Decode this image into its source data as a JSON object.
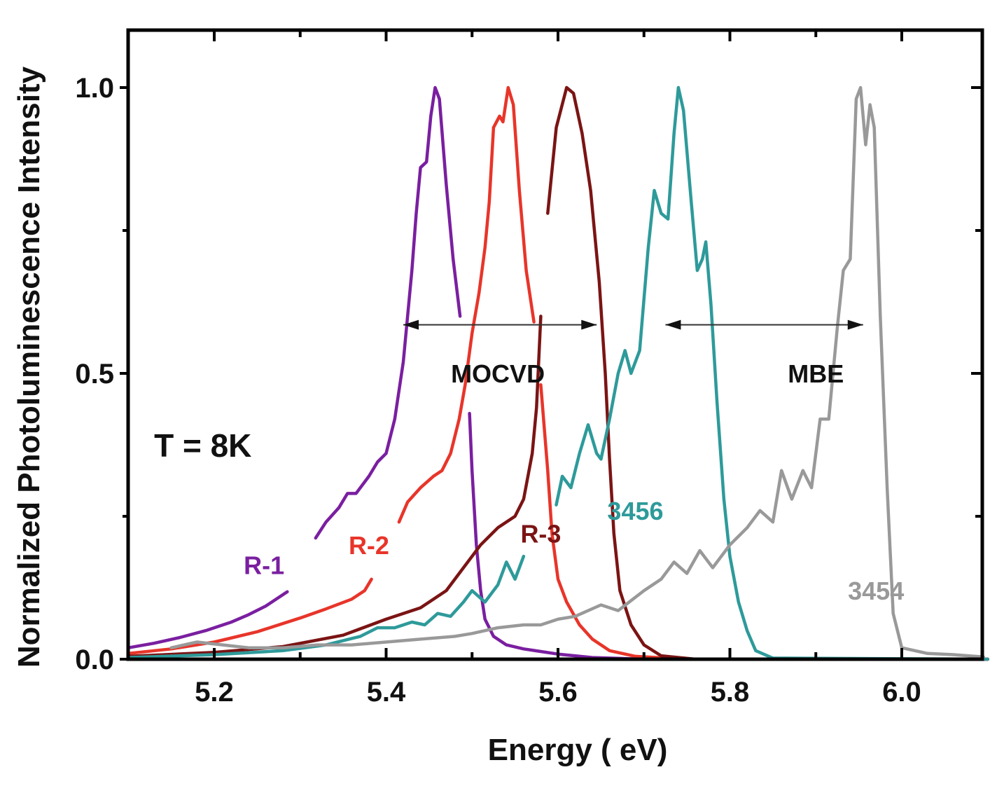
{
  "chart_data": {
    "type": "line",
    "title": "",
    "xlabel": "Energy ( eV)",
    "ylabel": "Normalized Photoluminescence Intensity",
    "xlim": [
      5.1,
      6.1
    ],
    "ylim": [
      0.0,
      1.1
    ],
    "x_ticks": [
      5.2,
      5.4,
      5.6,
      5.8,
      6.0
    ],
    "x_tick_labels": [
      "5.2",
      "5.4",
      "5.6",
      "5.8",
      "6.0"
    ],
    "x_minor_ticks": [
      5.3,
      5.5,
      5.7,
      5.9
    ],
    "y_ticks": [
      0.0,
      0.5,
      1.0
    ],
    "y_tick_labels": [
      "0.0",
      "0.5",
      "1.0"
    ],
    "y_minor_ticks": [
      0.25,
      0.75
    ],
    "grid": false,
    "legend": "none (inline curve labels)",
    "annotations": [
      {
        "id": "temperature",
        "text": "T = 8K",
        "x": 5.13,
        "y": 0.37,
        "color": "#111111"
      },
      {
        "id": "mocvd",
        "text": "MOCVD",
        "x": 5.53,
        "y": 0.5,
        "color": "#111111"
      },
      {
        "id": "mbe",
        "text": "MBE",
        "x": 5.9,
        "y": 0.5,
        "color": "#111111"
      }
    ],
    "arrows": [
      {
        "id": "mocvd-range",
        "from": 5.42,
        "to": 5.645,
        "y": 0.585
      },
      {
        "id": "mbe-range",
        "from": 5.725,
        "to": 5.955,
        "y": 0.585
      }
    ],
    "series": [
      {
        "name": "R-1",
        "group": "MOCVD",
        "color": "#7a1fa0",
        "label": {
          "text": "R-1",
          "x": 5.258,
          "y": 0.165
        },
        "segments": [
          [
            [
              5.1,
              0.02
            ],
            [
              5.13,
              0.028
            ],
            [
              5.16,
              0.038
            ],
            [
              5.19,
              0.05
            ],
            [
              5.22,
              0.065
            ],
            [
              5.24,
              0.078
            ],
            [
              5.26,
              0.093
            ],
            [
              5.285,
              0.118
            ]
          ],
          [
            [
              5.318,
              0.212
            ],
            [
              5.33,
              0.24
            ],
            [
              5.345,
              0.265
            ],
            [
              5.355,
              0.29
            ],
            [
              5.365,
              0.29
            ],
            [
              5.38,
              0.32
            ],
            [
              5.39,
              0.345
            ],
            [
              5.4,
              0.36
            ],
            [
              5.41,
              0.42
            ],
            [
              5.42,
              0.52
            ],
            [
              5.43,
              0.68
            ],
            [
              5.435,
              0.78
            ],
            [
              5.44,
              0.86
            ],
            [
              5.447,
              0.87
            ],
            [
              5.452,
              0.95
            ],
            [
              5.457,
              1.0
            ],
            [
              5.462,
              0.98
            ],
            [
              5.47,
              0.83
            ],
            [
              5.478,
              0.7
            ],
            [
              5.486,
              0.6
            ]
          ],
          [
            [
              5.497,
              0.43
            ],
            [
              5.5,
              0.33
            ],
            [
              5.505,
              0.2
            ],
            [
              5.51,
              0.12
            ],
            [
              5.515,
              0.07
            ],
            [
              5.525,
              0.04
            ],
            [
              5.54,
              0.025
            ],
            [
              5.56,
              0.018
            ],
            [
              5.6,
              0.009
            ],
            [
              5.64,
              0.003
            ],
            [
              5.7,
              0.0
            ],
            [
              6.1,
              0.0
            ]
          ]
        ]
      },
      {
        "name": "R-2",
        "group": "MOCVD",
        "color": "#e8352a",
        "label": {
          "text": "R-2",
          "x": 5.38,
          "y": 0.2
        },
        "segments": [
          [
            [
              5.1,
              0.01
            ],
            [
              5.15,
              0.018
            ],
            [
              5.2,
              0.03
            ],
            [
              5.25,
              0.048
            ],
            [
              5.3,
              0.072
            ],
            [
              5.33,
              0.088
            ],
            [
              5.36,
              0.105
            ],
            [
              5.375,
              0.12
            ],
            [
              5.383,
              0.14
            ]
          ],
          [
            [
              5.415,
              0.24
            ],
            [
              5.425,
              0.275
            ],
            [
              5.44,
              0.3
            ],
            [
              5.455,
              0.32
            ],
            [
              5.465,
              0.33
            ],
            [
              5.475,
              0.36
            ],
            [
              5.485,
              0.42
            ],
            [
              5.492,
              0.48
            ],
            [
              5.5,
              0.57
            ],
            [
              5.508,
              0.64
            ],
            [
              5.515,
              0.72
            ],
            [
              5.52,
              0.8
            ],
            [
              5.525,
              0.93
            ],
            [
              5.532,
              0.95
            ],
            [
              5.536,
              0.94
            ],
            [
              5.542,
              1.0
            ],
            [
              5.548,
              0.97
            ],
            [
              5.555,
              0.82
            ],
            [
              5.563,
              0.68
            ],
            [
              5.572,
              0.59
            ]
          ],
          [
            [
              5.58,
              0.48
            ],
            [
              5.588,
              0.33
            ],
            [
              5.593,
              0.22
            ],
            [
              5.6,
              0.14
            ],
            [
              5.61,
              0.1
            ],
            [
              5.625,
              0.06
            ],
            [
              5.64,
              0.035
            ],
            [
              5.66,
              0.015
            ],
            [
              5.69,
              0.005
            ],
            [
              5.75,
              0.0
            ],
            [
              6.1,
              0.0
            ]
          ]
        ]
      },
      {
        "name": "R-3",
        "group": "MOCVD",
        "color": "#7b1414",
        "label": {
          "text": "R-3",
          "x": 5.58,
          "y": 0.22
        },
        "segments": [
          [
            [
              5.1,
              0.005
            ],
            [
              5.2,
              0.012
            ],
            [
              5.28,
              0.022
            ],
            [
              5.35,
              0.042
            ],
            [
              5.4,
              0.07
            ],
            [
              5.44,
              0.09
            ],
            [
              5.47,
              0.12
            ],
            [
              5.49,
              0.16
            ],
            [
              5.51,
              0.2
            ],
            [
              5.53,
              0.23
            ],
            [
              5.55,
              0.25
            ],
            [
              5.56,
              0.28
            ],
            [
              5.57,
              0.36
            ],
            [
              5.575,
              0.44
            ],
            [
              5.58,
              0.6
            ]
          ],
          [
            [
              5.588,
              0.78
            ],
            [
              5.598,
              0.93
            ],
            [
              5.61,
              1.0
            ],
            [
              5.618,
              0.99
            ],
            [
              5.628,
              0.92
            ],
            [
              5.638,
              0.82
            ],
            [
              5.648,
              0.66
            ],
            [
              5.655,
              0.5
            ],
            [
              5.66,
              0.35
            ],
            [
              5.665,
              0.22
            ],
            [
              5.672,
              0.12
            ],
            [
              5.685,
              0.06
            ],
            [
              5.7,
              0.025
            ],
            [
              5.72,
              0.006
            ],
            [
              5.76,
              0.0
            ],
            [
              6.1,
              0.0
            ]
          ]
        ]
      },
      {
        "name": "3456",
        "group": "MBE",
        "color": "#2e9a9a",
        "label": {
          "text": "3456",
          "x": 5.69,
          "y": 0.26
        },
        "segments": [
          [
            [
              5.1,
              0.003
            ],
            [
              5.2,
              0.008
            ],
            [
              5.28,
              0.015
            ],
            [
              5.33,
              0.025
            ],
            [
              5.37,
              0.04
            ],
            [
              5.39,
              0.055
            ],
            [
              5.41,
              0.055
            ],
            [
              5.43,
              0.065
            ],
            [
              5.445,
              0.06
            ],
            [
              5.46,
              0.08
            ],
            [
              5.475,
              0.075
            ],
            [
              5.49,
              0.1
            ],
            [
              5.5,
              0.12
            ],
            [
              5.515,
              0.1
            ],
            [
              5.53,
              0.13
            ],
            [
              5.54,
              0.17
            ],
            [
              5.55,
              0.14
            ],
            [
              5.56,
              0.18
            ]
          ],
          [
            [
              5.598,
              0.27
            ],
            [
              5.605,
              0.32
            ],
            [
              5.615,
              0.3
            ],
            [
              5.625,
              0.36
            ],
            [
              5.635,
              0.41
            ],
            [
              5.645,
              0.36
            ],
            [
              5.65,
              0.35
            ],
            [
              5.66,
              0.42
            ],
            [
              5.67,
              0.5
            ],
            [
              5.678,
              0.54
            ],
            [
              5.685,
              0.5
            ],
            [
              5.695,
              0.54
            ],
            [
              5.705,
              0.72
            ],
            [
              5.712,
              0.82
            ],
            [
              5.72,
              0.78
            ],
            [
              5.728,
              0.77
            ],
            [
              5.735,
              0.92
            ],
            [
              5.74,
              1.0
            ],
            [
              5.746,
              0.96
            ],
            [
              5.755,
              0.8
            ],
            [
              5.762,
              0.68
            ],
            [
              5.768,
              0.7
            ],
            [
              5.772,
              0.73
            ],
            [
              5.778,
              0.62
            ],
            [
              5.785,
              0.45
            ],
            [
              5.793,
              0.28
            ],
            [
              5.8,
              0.18
            ],
            [
              5.81,
              0.1
            ],
            [
              5.82,
              0.05
            ],
            [
              5.83,
              0.015
            ],
            [
              5.85,
              0.002
            ],
            [
              6.1,
              0.0
            ]
          ]
        ]
      },
      {
        "name": "3454",
        "group": "MBE",
        "color": "#999999",
        "label": {
          "text": "3454",
          "x": 5.97,
          "y": 0.12
        },
        "segments": [
          [
            [
              5.15,
              0.02
            ],
            [
              5.18,
              0.03
            ],
            [
              5.21,
              0.025
            ],
            [
              5.24,
              0.02
            ],
            [
              5.28,
              0.02
            ],
            [
              5.32,
              0.025
            ],
            [
              5.36,
              0.025
            ],
            [
              5.4,
              0.03
            ],
            [
              5.44,
              0.035
            ],
            [
              5.48,
              0.04
            ],
            [
              5.5,
              0.045
            ],
            [
              5.53,
              0.055
            ],
            [
              5.56,
              0.06
            ],
            [
              5.58,
              0.06
            ],
            [
              5.6,
              0.07
            ],
            [
              5.62,
              0.075
            ],
            [
              5.65,
              0.095
            ],
            [
              5.67,
              0.085
            ],
            [
              5.7,
              0.12
            ],
            [
              5.72,
              0.14
            ],
            [
              5.735,
              0.17
            ],
            [
              5.75,
              0.15
            ],
            [
              5.765,
              0.19
            ],
            [
              5.78,
              0.16
            ],
            [
              5.8,
              0.2
            ],
            [
              5.82,
              0.23
            ],
            [
              5.835,
              0.26
            ],
            [
              5.85,
              0.24
            ],
            [
              5.86,
              0.33
            ],
            [
              5.872,
              0.28
            ],
            [
              5.885,
              0.33
            ],
            [
              5.895,
              0.3
            ],
            [
              5.905,
              0.42
            ],
            [
              5.915,
              0.42
            ],
            [
              5.925,
              0.58
            ],
            [
              5.932,
              0.68
            ],
            [
              5.94,
              0.7
            ],
            [
              5.947,
              0.98
            ],
            [
              5.952,
              1.0
            ],
            [
              5.958,
              0.9
            ],
            [
              5.963,
              0.97
            ],
            [
              5.968,
              0.93
            ],
            [
              5.975,
              0.6
            ],
            [
              5.983,
              0.3
            ],
            [
              5.99,
              0.08
            ],
            [
              6.0,
              0.02
            ],
            [
              6.03,
              0.01
            ],
            [
              6.06,
              0.008
            ],
            [
              6.095,
              0.004
            ]
          ]
        ]
      }
    ]
  }
}
